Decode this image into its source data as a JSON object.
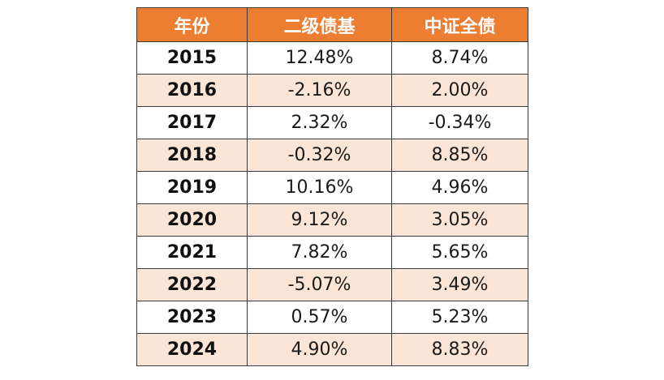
{
  "colors": {
    "header_bg": "#ed7d31",
    "header_text": "#ffffff",
    "alt_row_bg": "#fbe5d6",
    "border": "#3a3a3a"
  },
  "chart_data": {
    "type": "table",
    "columns": [
      "年份",
      "二级债基",
      "中证全债"
    ],
    "rows": [
      [
        "2015",
        "12.48%",
        "8.74%"
      ],
      [
        "2016",
        "-2.16%",
        "2.00%"
      ],
      [
        "2017",
        "2.32%",
        "-0.34%"
      ],
      [
        "2018",
        "-0.32%",
        "8.85%"
      ],
      [
        "2019",
        "10.16%",
        "4.96%"
      ],
      [
        "2020",
        "9.12%",
        "3.05%"
      ],
      [
        "2021",
        "7.82%",
        "5.65%"
      ],
      [
        "2022",
        "-5.07%",
        "3.49%"
      ],
      [
        "2023",
        "0.57%",
        "5.23%"
      ],
      [
        "2024",
        "4.90%",
        "8.83%"
      ]
    ]
  }
}
